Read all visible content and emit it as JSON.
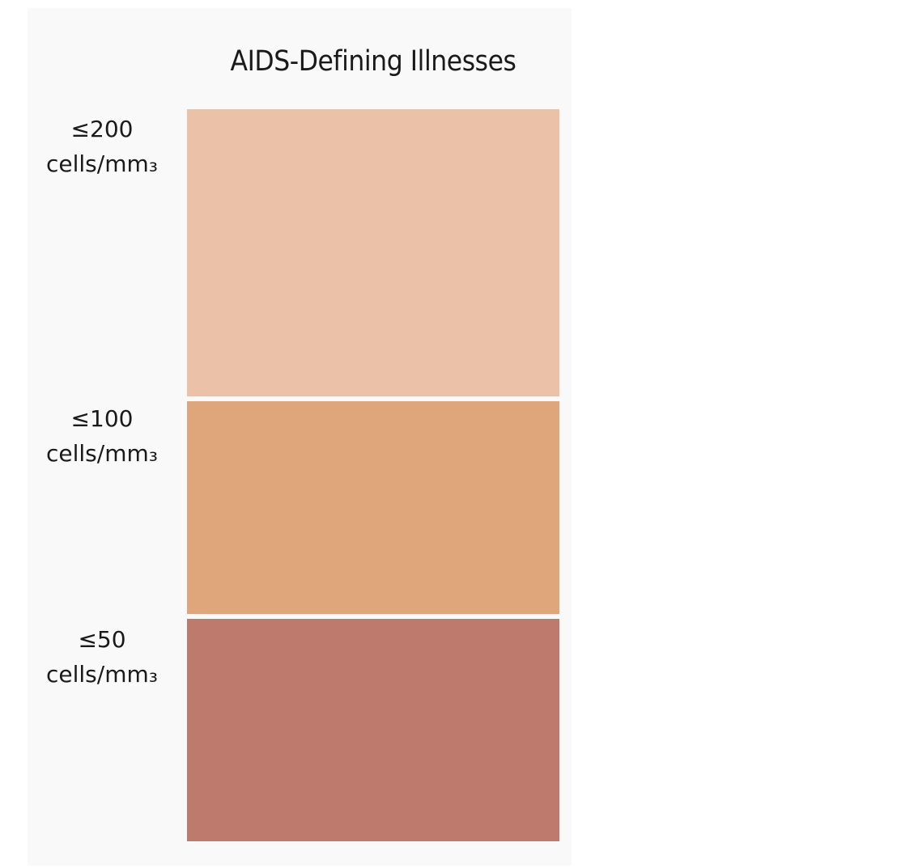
{
  "title": "AIDS-Defining Illnesses",
  "tiers": [
    {
      "threshold": "≤200",
      "unit": "cells/mm₃",
      "color": "#ebc2a8"
    },
    {
      "threshold": "≤100",
      "unit": "cells/mm₃",
      "color": "#dea67a"
    },
    {
      "threshold": "≤50",
      "unit": "cells/mm₃",
      "color": "#bd7a6d"
    }
  ]
}
